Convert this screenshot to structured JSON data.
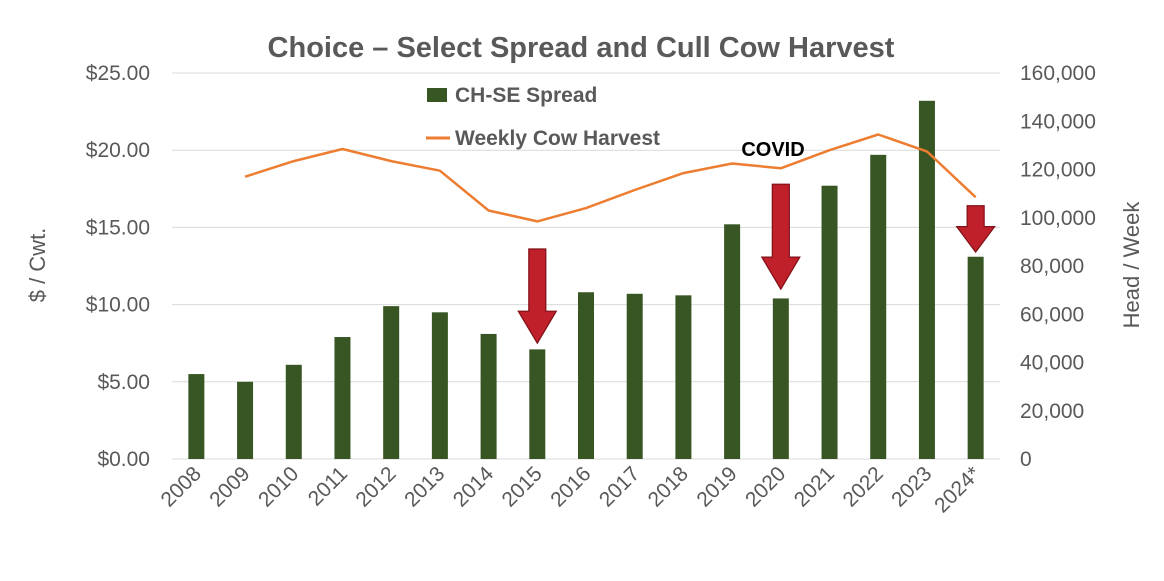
{
  "chart_data": {
    "type": "bar",
    "title": "Choice – Select Spread and Cull Cow Harvest",
    "categories": [
      "2008",
      "2009",
      "2010",
      "2011",
      "2012",
      "2013",
      "2014",
      "2015",
      "2016",
      "2017",
      "2018",
      "2019",
      "2020",
      "2021",
      "2022",
      "2023",
      "2024*"
    ],
    "series": [
      {
        "name": "CH-SE Spread",
        "type": "bar",
        "axis": "left",
        "color": "#375623",
        "values": [
          5.5,
          5.0,
          6.1,
          7.9,
          9.9,
          9.5,
          8.1,
          7.1,
          10.8,
          10.7,
          10.6,
          15.2,
          10.4,
          17.7,
          19.7,
          23.2,
          13.1
        ]
      },
      {
        "name": "Weekly Cow Harvest",
        "type": "line",
        "axis": "right",
        "color": "#ED7D31",
        "values": [
          null,
          117000,
          123500,
          128500,
          123500,
          119500,
          103000,
          98500,
          104000,
          111500,
          118500,
          122500,
          120500,
          128000,
          134500,
          127500,
          108500
        ]
      }
    ],
    "y_left": {
      "label": "$ / Cwt.",
      "ylim": [
        0,
        25
      ],
      "ticks": [
        0,
        5,
        10,
        15,
        20,
        25
      ],
      "tick_labels": [
        "$0.00",
        "$5.00",
        "$10.00",
        "$15.00",
        "$20.00",
        "$25.00"
      ]
    },
    "y_right": {
      "label": "Head / Week",
      "ylim": [
        0,
        160000
      ],
      "ticks": [
        0,
        20000,
        40000,
        60000,
        80000,
        100000,
        120000,
        140000,
        160000
      ],
      "tick_labels": [
        "0",
        "20,000",
        "40,000",
        "60,000",
        "80,000",
        "100,000",
        "120,000",
        "140,000",
        "160,000"
      ]
    },
    "grid": true,
    "legend_position": "top-center-left",
    "annotations": [
      {
        "text": "COVID",
        "category": "2020"
      },
      {
        "arrow": "down",
        "category": "2015",
        "from": 13.6,
        "to": 7.5,
        "color": "#C0202A"
      },
      {
        "arrow": "down",
        "category": "2020",
        "from": 17.8,
        "to": 11.0,
        "color": "#C0202A"
      },
      {
        "arrow": "down",
        "category": "2024*",
        "from": 16.4,
        "to": 13.4,
        "color": "#C0202A"
      }
    ]
  }
}
